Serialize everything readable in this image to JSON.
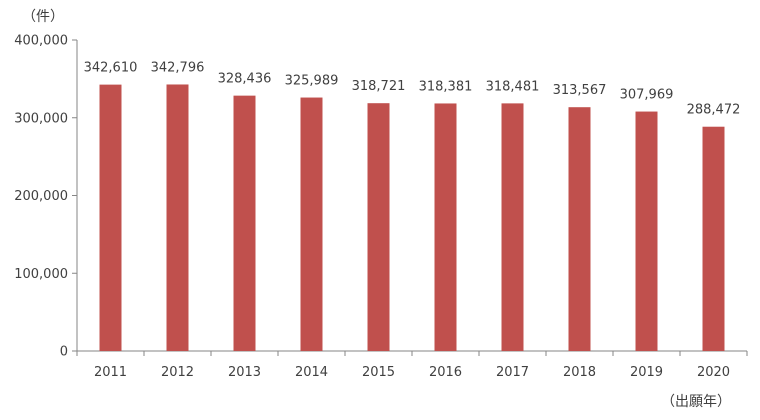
{
  "chart_data": {
    "type": "bar",
    "categories": [
      "2011",
      "2012",
      "2013",
      "2014",
      "2015",
      "2016",
      "2017",
      "2018",
      "2019",
      "2020"
    ],
    "values": [
      342610,
      342796,
      328436,
      325989,
      318721,
      318381,
      318481,
      313567,
      307969,
      288472
    ],
    "value_labels": [
      "342,610",
      "342,796",
      "328,436",
      "325,989",
      "318,721",
      "318,381",
      "318,481",
      "313,567",
      "307,969",
      "288,472"
    ],
    "ylim": [
      0,
      400000
    ],
    "yticks": [
      0,
      100000,
      200000,
      300000,
      400000
    ],
    "ytick_labels": [
      "0",
      "100,000",
      "200,000",
      "300,000",
      "400,000"
    ],
    "y_unit_label": "（件）",
    "x_unit_label": "（出願年）",
    "bar_color": "#C0504D",
    "grid": false,
    "legend": "none"
  }
}
